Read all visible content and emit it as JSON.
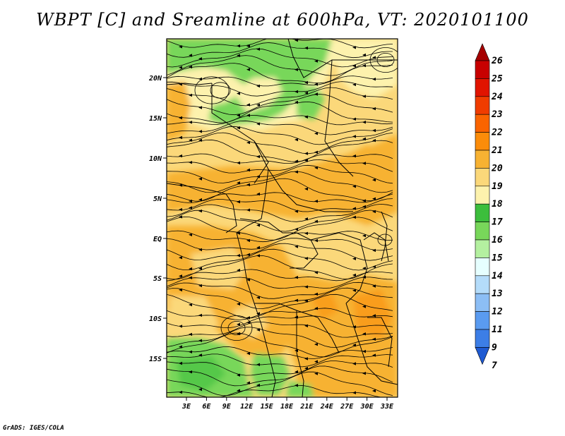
{
  "title": "WBPT [C] and Sreamline at 600hPa, VT: 2020101100",
  "footer": "GrADS: IGES/COLA",
  "map": {
    "lon_range": [
      0,
      35
    ],
    "lat_range": [
      -19,
      24
    ],
    "lon_ticks": [
      "3E",
      "6E",
      "9E",
      "12E",
      "15E",
      "18E",
      "21E",
      "24E",
      "27E",
      "30E",
      "33E"
    ],
    "lat_ticks": [
      "20N",
      "15N",
      "10N",
      "5N",
      "EQ",
      "5S",
      "10S",
      "15S"
    ]
  },
  "colorbar": {
    "labels": [
      "26",
      "25",
      "24",
      "23",
      "22",
      "21",
      "20",
      "19",
      "18",
      "17",
      "16",
      "15",
      "14",
      "13",
      "12",
      "11",
      "9",
      "7"
    ],
    "colors": [
      "#a50000",
      "#c80000",
      "#e11400",
      "#f03c00",
      "#fa6400",
      "#fb8c0a",
      "#f7b232",
      "#fbd87a",
      "#fdf2ad",
      "#3cbe3c",
      "#78d75a",
      "#b4f0a0",
      "#e6ffff",
      "#b4dcfa",
      "#8cbef5",
      "#5a9bf0",
      "#3c7ee6",
      "#1e5ad2"
    ]
  }
}
